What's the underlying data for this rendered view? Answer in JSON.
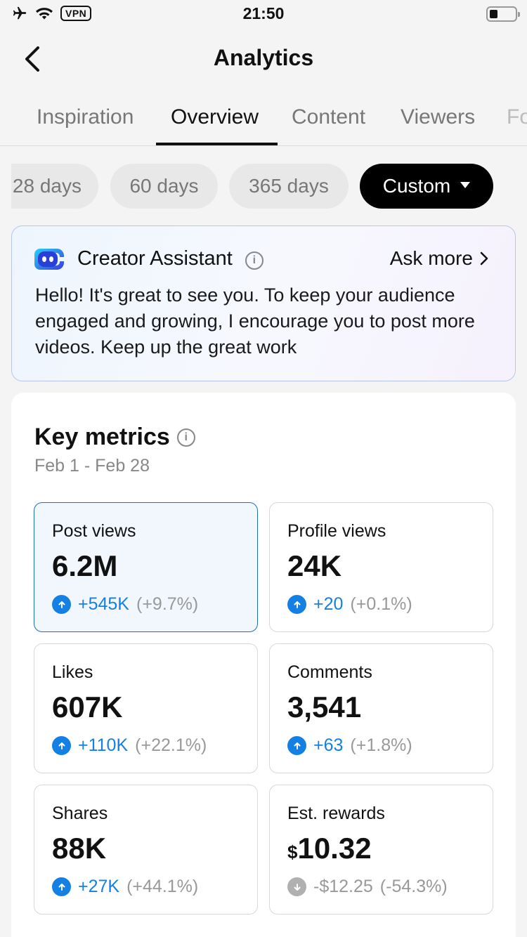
{
  "status_bar": {
    "time": "21:50",
    "vpn_label": "VPN"
  },
  "header": {
    "title": "Analytics"
  },
  "tabs": [
    {
      "label": "Inspiration",
      "active": false
    },
    {
      "label": "Overview",
      "active": true
    },
    {
      "label": "Content",
      "active": false
    },
    {
      "label": "Viewers",
      "active": false
    },
    {
      "label": "Fo",
      "active": false
    }
  ],
  "periods": [
    {
      "label": "28 days",
      "active": false
    },
    {
      "label": "60 days",
      "active": false
    },
    {
      "label": "365 days",
      "active": false
    },
    {
      "label": "Custom",
      "active": true
    }
  ],
  "assistant": {
    "title": "Creator Assistant",
    "ask_more": "Ask more",
    "message": "Hello! It's great to see you. To keep your audience engaged and growing, I encourage you to post more videos. Keep up the great work"
  },
  "key_metrics": {
    "title": "Key metrics",
    "date_range": "Feb 1 - Feb 28",
    "items": [
      {
        "label": "Post views",
        "value": "6.2M",
        "currency": "",
        "delta": "+545K",
        "pct": "(+9.7%)",
        "trend": "up",
        "selected": true
      },
      {
        "label": "Profile views",
        "value": "24K",
        "currency": "",
        "delta": "+20",
        "pct": "(+0.1%)",
        "trend": "up",
        "selected": false
      },
      {
        "label": "Likes",
        "value": "607K",
        "currency": "",
        "delta": "+110K",
        "pct": "(+22.1%)",
        "trend": "up",
        "selected": false
      },
      {
        "label": "Comments",
        "value": "3,541",
        "currency": "",
        "delta": "+63",
        "pct": "(+1.8%)",
        "trend": "up",
        "selected": false
      },
      {
        "label": "Shares",
        "value": "88K",
        "currency": "",
        "delta": "+27K",
        "pct": "(+44.1%)",
        "trend": "up",
        "selected": false
      },
      {
        "label": "Est. rewards",
        "value": "10.32",
        "currency": "$",
        "delta": "-$12.25",
        "pct": "(-54.3%)",
        "trend": "down",
        "selected": false
      }
    ]
  },
  "colors": {
    "accent_blue": "#1480e3",
    "selected_border": "#1d6fb8",
    "muted": "#999999"
  }
}
